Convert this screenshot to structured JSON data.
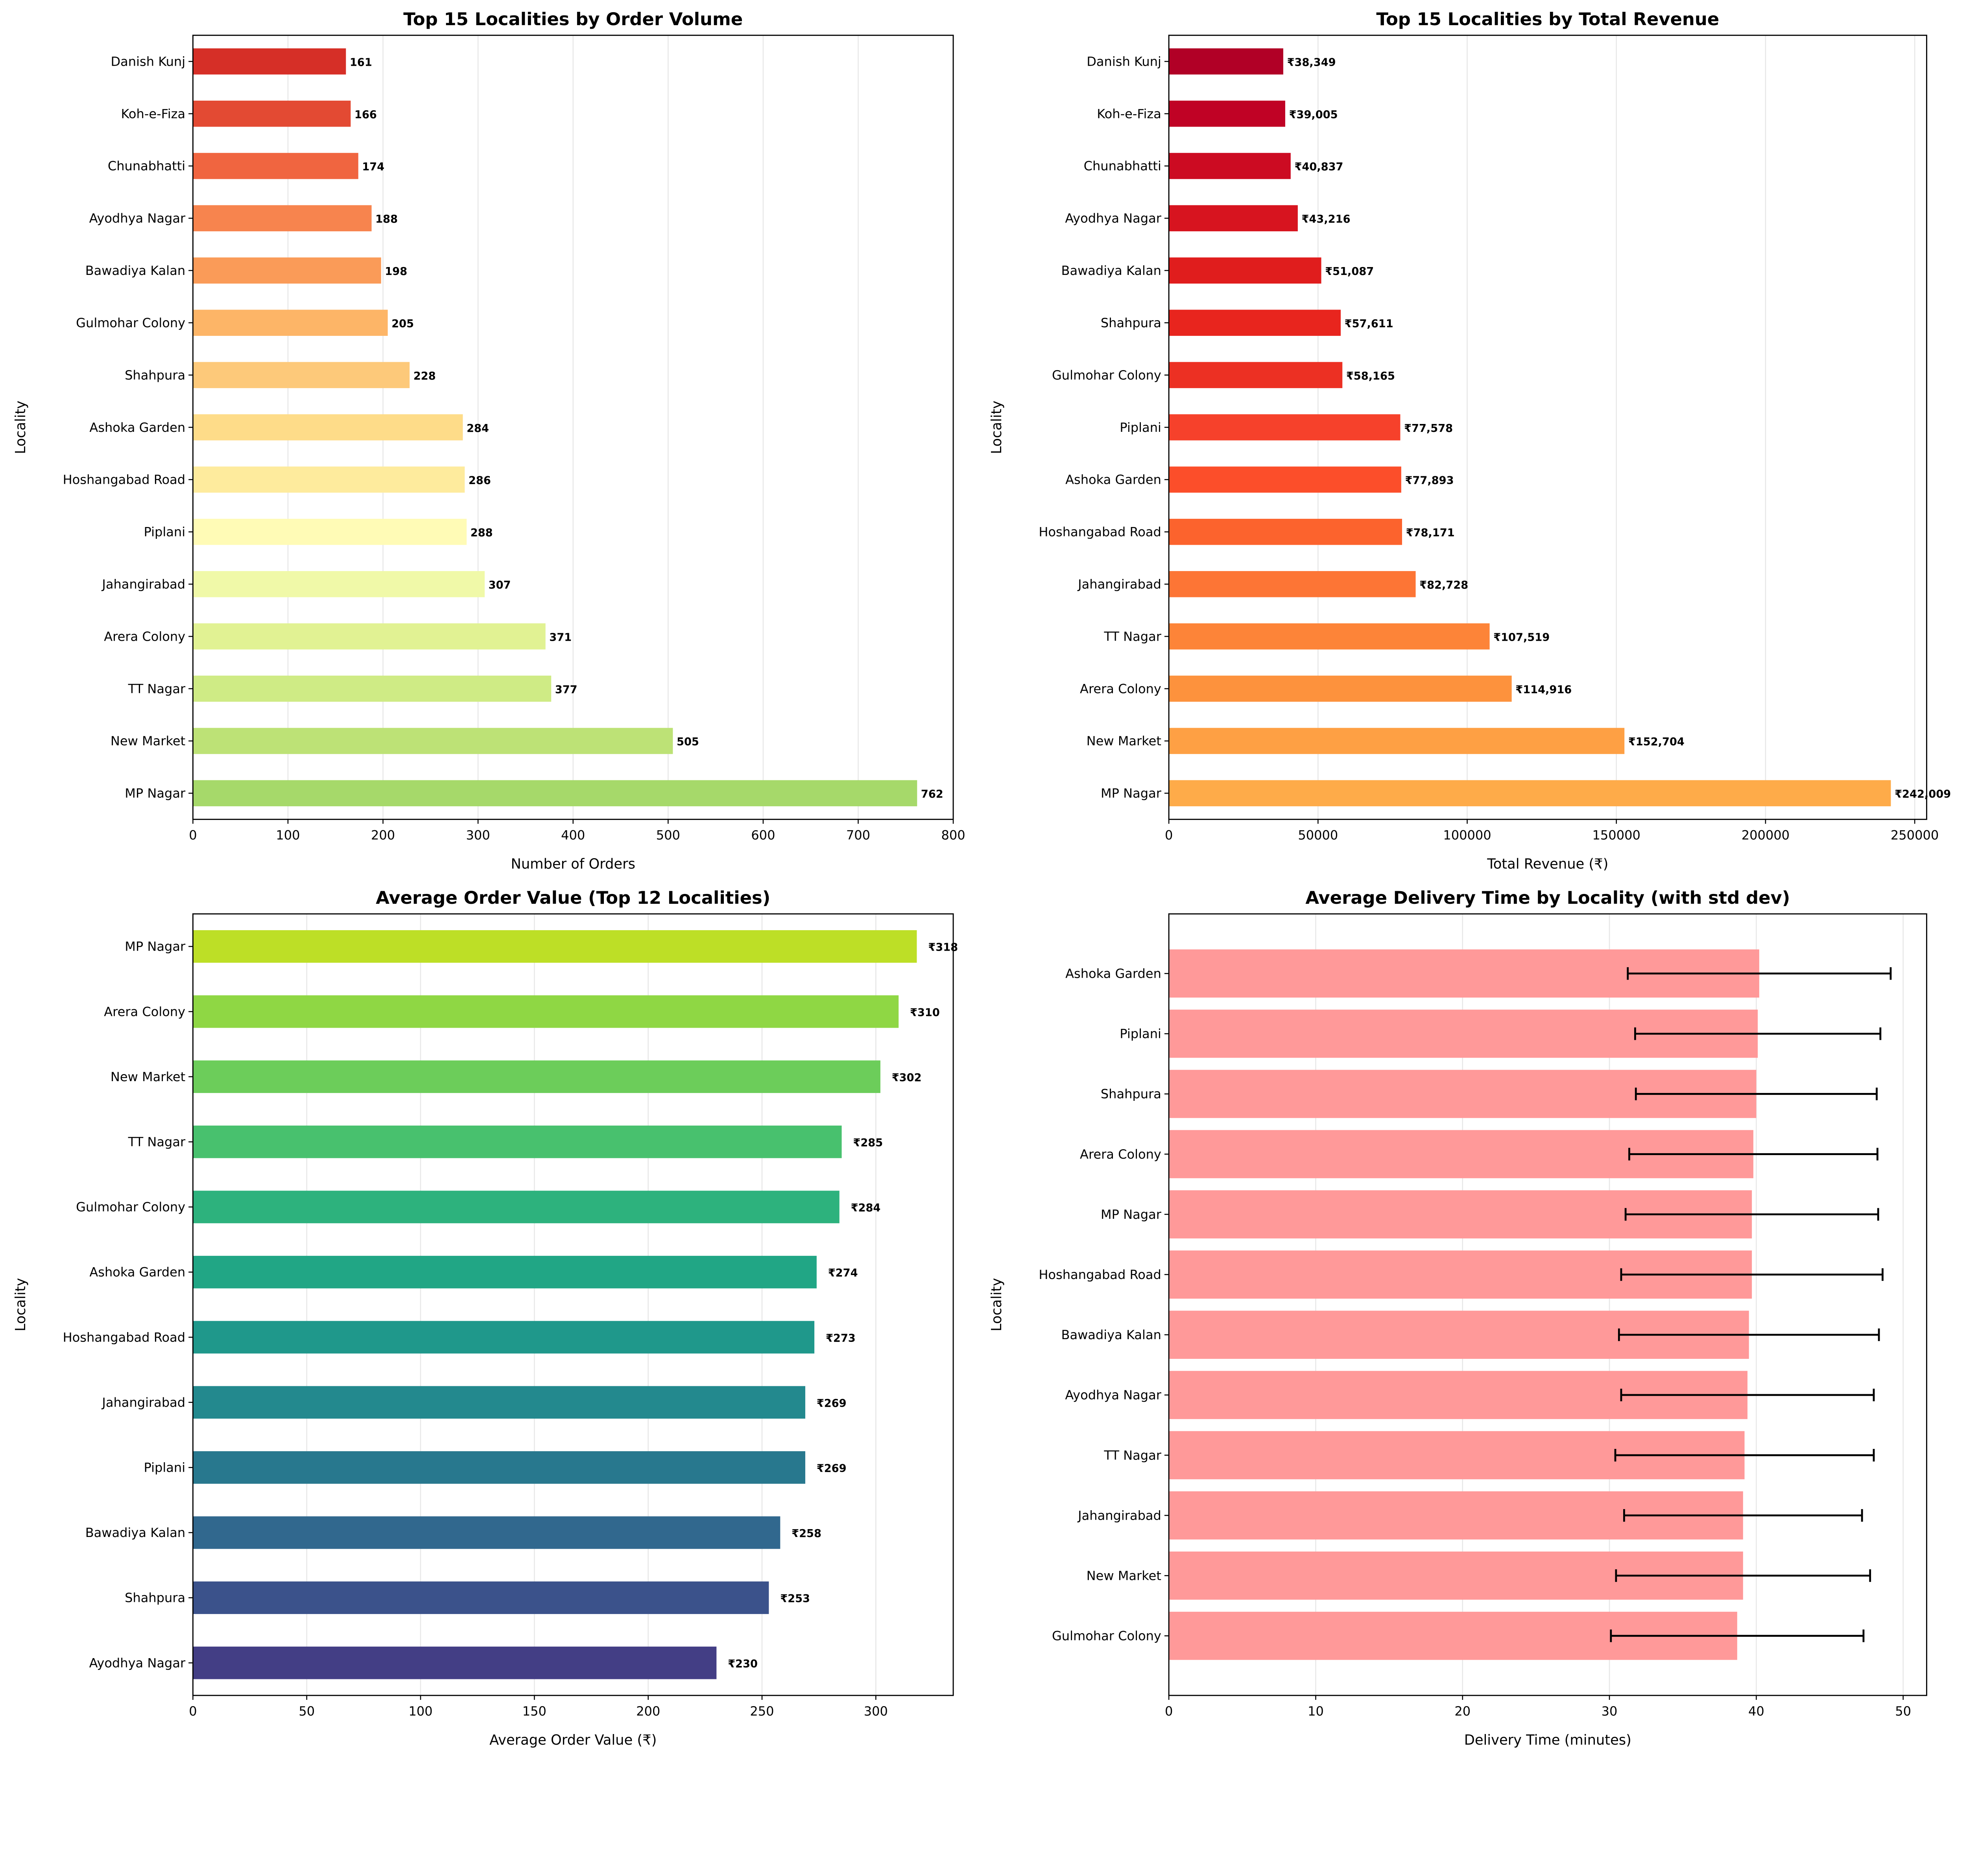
{
  "chart_data": [
    {
      "type": "bar",
      "orientation": "horizontal",
      "title": "Top 15 Localities by Order Volume",
      "xlabel": "Number of Orders",
      "ylabel": "Locality",
      "xlim": [
        0,
        800
      ],
      "xticks": [
        0,
        100,
        200,
        300,
        400,
        500,
        600,
        700,
        800
      ],
      "grid": "x",
      "value_prefix": "",
      "categories": [
        "Danish Kunj",
        "Koh-e-Fiza",
        "Chunabhatti",
        "Ayodhya Nagar",
        "Bawadiya Kalan",
        "Gulmohar Colony",
        "Shahpura",
        "Ashoka Garden",
        "Hoshangabad Road",
        "Piplani",
        "Jahangirabad",
        "Arera Colony",
        "TT Nagar",
        "New Market",
        "MP Nagar"
      ],
      "values": [
        161,
        166,
        174,
        188,
        198,
        205,
        228,
        284,
        286,
        288,
        307,
        371,
        377,
        505,
        762
      ],
      "colors": [
        "#d62f27",
        "#e34a33",
        "#f06540",
        "#f7844e",
        "#fa9b58",
        "#fdb567",
        "#fdc97a",
        "#fedc89",
        "#feeb9d",
        "#fffbb6",
        "#f0f9a8",
        "#e1f293",
        "#cfeb85",
        "#bde276",
        "#a6d96a"
      ]
    },
    {
      "type": "bar",
      "orientation": "horizontal",
      "title": "Top 15 Localities by Total Revenue",
      "xlabel": "Total Revenue (₹)",
      "ylabel": "Locality",
      "xlim": [
        0,
        254000
      ],
      "xticks": [
        0,
        50000,
        100000,
        150000,
        200000,
        250000
      ],
      "grid": "x",
      "value_prefix": "₹",
      "categories": [
        "Danish Kunj",
        "Koh-e-Fiza",
        "Chunabhatti",
        "Ayodhya Nagar",
        "Bawadiya Kalan",
        "Shahpura",
        "Gulmohar Colony",
        "Piplani",
        "Ashoka Garden",
        "Hoshangabad Road",
        "Jahangirabad",
        "TT Nagar",
        "Arera Colony",
        "New Market",
        "MP Nagar"
      ],
      "values": [
        38349,
        39005,
        40837,
        43216,
        51087,
        57611,
        58165,
        77578,
        77893,
        78171,
        82728,
        107519,
        114916,
        152704,
        242009
      ],
      "colors": [
        "#b10026",
        "#c00225",
        "#cc0b22",
        "#d7141f",
        "#e01d1d",
        "#e8251e",
        "#ec3023",
        "#f6412b",
        "#fc4e2a",
        "#fc632d",
        "#fd7535",
        "#fd8438",
        "#fd923d",
        "#fea044",
        "#feab49"
      ]
    },
    {
      "type": "bar",
      "orientation": "horizontal",
      "title": "Average Order Value (Top 12 Localities)",
      "xlabel": "Average Order Value (₹)",
      "ylabel": "Locality",
      "xlim": [
        0,
        334
      ],
      "xticks": [
        0,
        50,
        100,
        150,
        200,
        250,
        300
      ],
      "grid": "x",
      "value_prefix": "₹",
      "categories": [
        "MP Nagar",
        "Arera Colony",
        "New Market",
        "TT Nagar",
        "Gulmohar Colony",
        "Ashoka Garden",
        "Hoshangabad Road",
        "Jahangirabad",
        "Piplani",
        "Bawadiya Kalan",
        "Shahpura",
        "Ayodhya Nagar"
      ],
      "values": [
        318,
        310,
        302,
        285,
        284,
        274,
        273,
        269,
        269,
        258,
        253,
        230
      ],
      "colors": [
        "#bddf26",
        "#8fd744",
        "#6ccd5a",
        "#48c16e",
        "#2db27d",
        "#21a685",
        "#1f988b",
        "#23898e",
        "#28788e",
        "#31688e",
        "#3b528b",
        "#433e85"
      ]
    },
    {
      "type": "bar",
      "orientation": "horizontal",
      "title": "Average Delivery Time by Locality (with std dev)",
      "xlabel": "Delivery Time (minutes)",
      "ylabel": "Locality",
      "xlim": [
        0,
        51.6
      ],
      "xticks": [
        0,
        10,
        20,
        30,
        40,
        50
      ],
      "grid": "x",
      "categories": [
        "Ashoka Garden",
        "Piplani",
        "Shahpura",
        "Arera Colony",
        "MP Nagar",
        "Hoshangabad Road",
        "Bawadiya Kalan",
        "Ayodhya Nagar",
        "TT Nagar",
        "Jahangirabad",
        "New Market",
        "Gulmohar Colony"
      ],
      "values": [
        40.2,
        40.1,
        40.0,
        39.8,
        39.7,
        39.7,
        39.5,
        39.4,
        39.2,
        39.1,
        39.1,
        38.7
      ],
      "std": [
        8.95,
        8.35,
        8.2,
        8.45,
        8.6,
        8.9,
        8.85,
        8.6,
        8.8,
        8.1,
        8.65,
        8.6
      ],
      "colors": [
        "#ff9999"
      ],
      "errorbar_color": "#000000"
    }
  ]
}
